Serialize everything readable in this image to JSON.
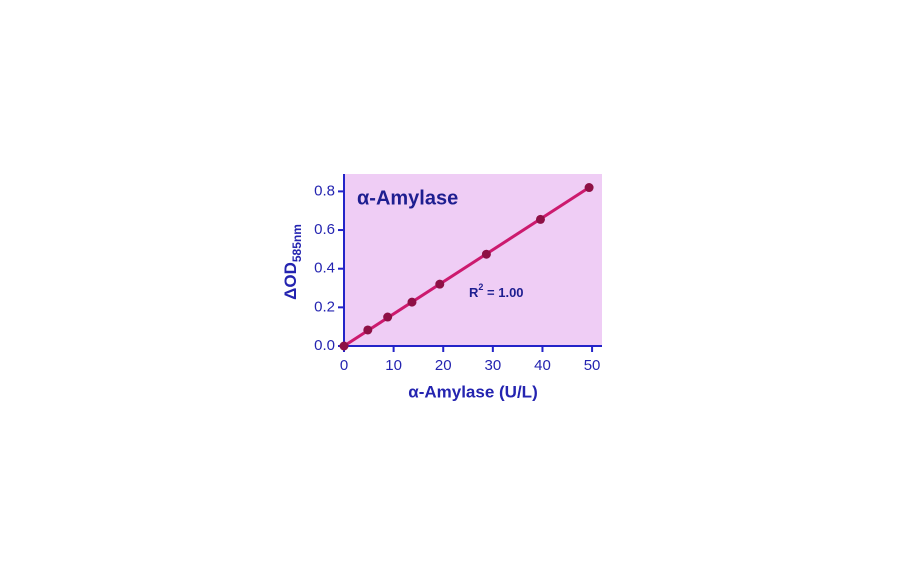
{
  "chart_data": {
    "type": "scatter",
    "title": "α-Amylase",
    "xlabel": "α-Amylase (U/L)",
    "ylabel": "ΔOD",
    "ylabel_sub": "585nm",
    "annotation": {
      "base": "R",
      "sup": "2",
      "rest": " = 1.00"
    },
    "series": [
      {
        "name": "α-Amylase",
        "color": "#8e1045",
        "x": [
          0,
          4.8,
          8.8,
          13.7,
          19.3,
          28.7,
          39.6,
          49.4
        ],
        "values": [
          0,
          0.083,
          0.15,
          0.227,
          0.32,
          0.475,
          0.655,
          0.82
        ]
      }
    ],
    "fit": {
      "color": "#cc1a6e",
      "x": [
        0,
        49.4
      ],
      "values": [
        0,
        0.82
      ]
    },
    "xlim": [
      0,
      52
    ],
    "xticks": [
      0,
      10,
      20,
      30,
      40,
      50
    ],
    "ylim": [
      0,
      0.89
    ],
    "yticks": [
      {
        "value": 0,
        "label": "0.0"
      },
      0.2,
      0.4,
      0.6,
      0.8
    ],
    "background": "#efcdf5",
    "axis_color": "#2323c8"
  }
}
